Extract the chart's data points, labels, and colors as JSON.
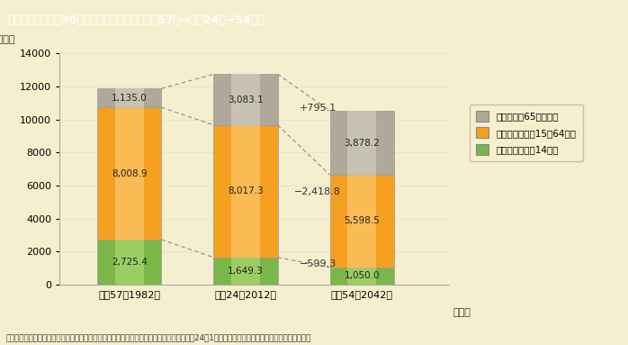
{
  "title": "㄄1－特－2図　30年ごとの人口の増減（昭和57年→平成24年→54年）",
  "title_display": "第１－特－２図　30年ごとの人口の増減（昭和57年→平成24年→54年）",
  "ylabel": "（万人）",
  "xlabel_year": "（年）",
  "bg_color": "#f5efcf",
  "plot_bg": "#f5efcf",
  "header_color": "#8b7355",
  "header_text_color": "#ffffff",
  "categories": [
    "昭和57（1982）",
    "平成24（2012）",
    "平成54（2042）"
  ],
  "elderly": [
    1135.0,
    3083.1,
    3878.2
  ],
  "working": [
    8008.9,
    8017.3,
    5598.5
  ],
  "young": [
    2725.4,
    1649.3,
    1050.0
  ],
  "color_elderly": "#b0a898",
  "color_working": "#f5a020",
  "color_young": "#7ab648",
  "ylim": [
    0,
    14000
  ],
  "yticks": [
    0,
    2000,
    4000,
    6000,
    8000,
    10000,
    12000,
    14000
  ],
  "diff_plus_color": "#333333",
  "diff_minus_color": "#333333",
  "note": "（備考）総務省「人口推計」、国立社会保障・人口問題研究所「日本の将来推計人口（平成24年1月推計）」（出生中位・死亡中位）より作成。",
  "legend_labels": [
    "老年人口（65歳以上）",
    "生産年齢人口（15～64歳）",
    "年少人口（０～14歳）"
  ]
}
